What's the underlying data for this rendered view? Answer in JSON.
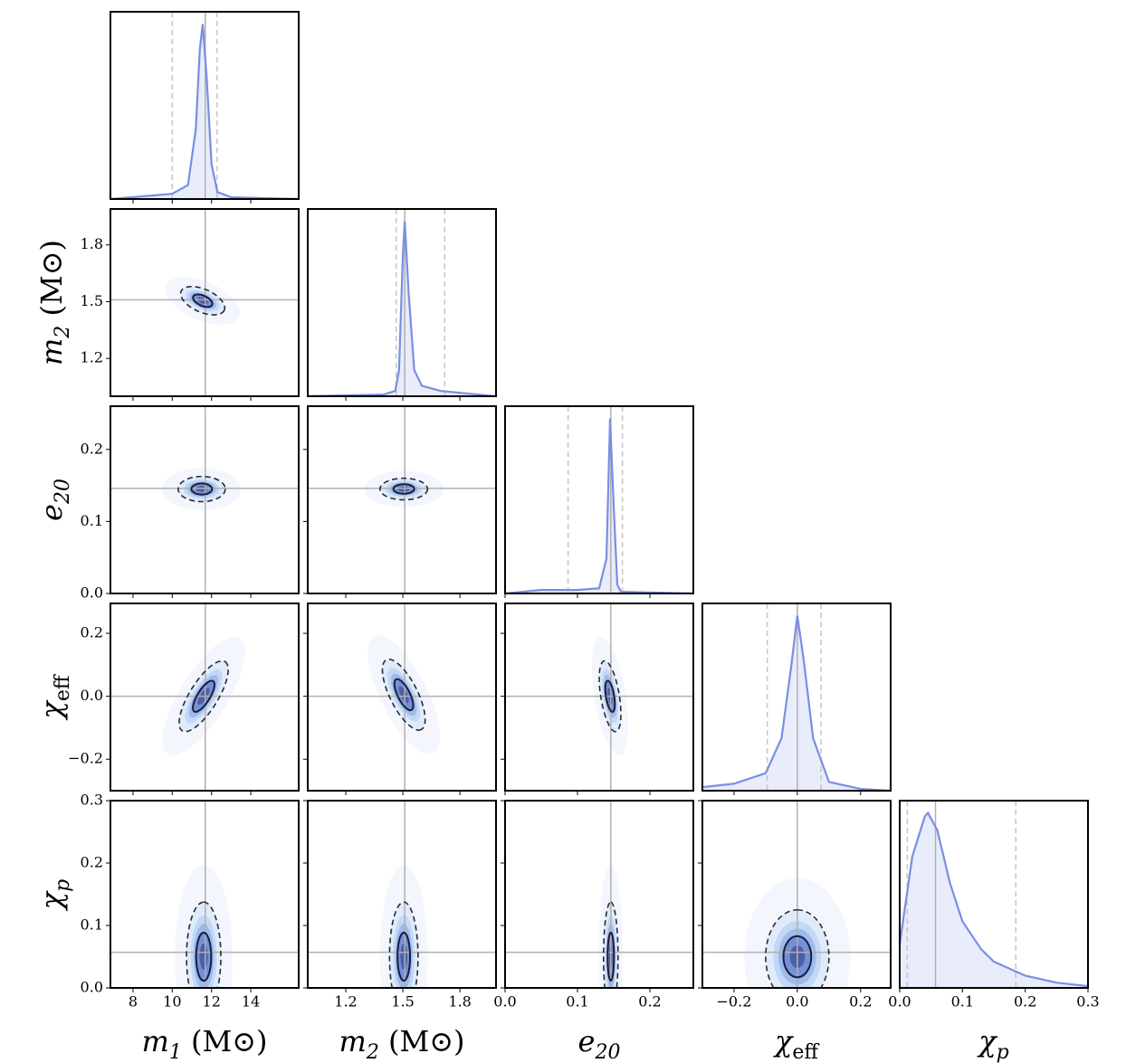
{
  "chart_data": {
    "type": "corner",
    "curve_color": "#7a8ee3",
    "fill_color": "#e8ecfb",
    "truth_color": "#b0b0b0",
    "quantile_color": "#c8c8c8",
    "contour_colors": [
      "#f3f7fd",
      "#dfeafa",
      "#c3d8f5",
      "#9dbbec",
      "#7391d9",
      "#4f5fa6"
    ],
    "parameters": [
      {
        "label": {
          "symbol": "m",
          "sub": "1",
          "unit": " (M⊙)"
        },
        "lim": [
          6.85,
          16.44
        ],
        "ticks": [
          8,
          10,
          12,
          14
        ],
        "truth": 11.68,
        "quantiles": [
          10.0,
          12.28
        ],
        "kde": {
          "x": [
            6.85,
            9,
            10,
            10.8,
            11.2,
            11.4,
            11.55,
            11.75,
            12.0,
            12.3,
            13,
            16.44
          ],
          "density": [
            0,
            0.02,
            0.03,
            0.08,
            0.4,
            0.85,
            1.0,
            0.7,
            0.2,
            0.04,
            0.01,
            0
          ]
        }
      },
      {
        "label": {
          "symbol": "m",
          "sub": "2",
          "unit": " (M⊙)"
        },
        "lim": [
          1.0,
          1.99
        ],
        "ticks": [
          1.2,
          1.5,
          1.8
        ],
        "truth": 1.51,
        "quantiles": [
          1.465,
          1.72
        ],
        "kde": {
          "x": [
            1.0,
            1.4,
            1.46,
            1.48,
            1.5,
            1.51,
            1.53,
            1.56,
            1.6,
            1.7,
            1.99
          ],
          "density": [
            0,
            0.01,
            0.03,
            0.15,
            0.8,
            1.0,
            0.6,
            0.15,
            0.06,
            0.03,
            0
          ]
        }
      },
      {
        "label": {
          "symbol": "e",
          "sub": "20",
          "unit": ""
        },
        "lim": [
          0,
          0.26
        ],
        "ticks": [
          {
            "value": 0,
            "label": "0.0"
          },
          0.1,
          0.2
        ],
        "truth": 0.146,
        "quantiles": [
          0.087,
          0.162
        ],
        "kde": {
          "x": [
            0,
            0.05,
            0.1,
            0.13,
            0.14,
            0.145,
            0.15,
            0.155,
            0.16,
            0.26
          ],
          "density": [
            0,
            0.02,
            0.02,
            0.03,
            0.2,
            1.0,
            0.5,
            0.05,
            0.01,
            0
          ]
        }
      },
      {
        "label": {
          "symbol": "χ",
          "sub": "eff",
          "unit": ""
        },
        "lim": [
          -0.3,
          0.295
        ],
        "ticks": [
          {
            "value": -0.2,
            "label": "−0.2"
          },
          {
            "value": 0,
            "label": "0.0"
          },
          0.2
        ],
        "truth": 0.0,
        "quantiles": [
          -0.095,
          0.075
        ],
        "kde": {
          "x": [
            -0.3,
            -0.2,
            -0.1,
            -0.05,
            -0.02,
            0.0,
            0.02,
            0.05,
            0.1,
            0.2,
            0.295
          ],
          "density": [
            0.02,
            0.04,
            0.1,
            0.3,
            0.7,
            1.0,
            0.75,
            0.3,
            0.05,
            0.01,
            0
          ]
        }
      },
      {
        "label": {
          "symbol": "χ",
          "sub": "p",
          "unit": ""
        },
        "lim": [
          0,
          0.3
        ],
        "ticks": [
          {
            "value": 0,
            "label": "0.0"
          },
          0.1,
          0.2,
          0.3
        ],
        "truth": 0.057,
        "quantiles": [
          0.012,
          0.185
        ],
        "kde": {
          "x": [
            0,
            0.02,
            0.04,
            0.045,
            0.06,
            0.08,
            0.1,
            0.13,
            0.15,
            0.2,
            0.25,
            0.3
          ],
          "density": [
            0.25,
            0.75,
            0.98,
            1.0,
            0.9,
            0.6,
            0.38,
            0.22,
            0.15,
            0.07,
            0.03,
            0.01
          ]
        }
      }
    ],
    "pairs": [
      [
        {
          "mean": [
            11.55,
            1.505
          ],
          "sd": [
            0.45,
            0.03
          ],
          "rho": -0.5
        }
      ],
      [
        {
          "mean": [
            11.5,
            0.145
          ],
          "sd": [
            0.48,
            0.007
          ],
          "rho": 0
        },
        {
          "mean": [
            1.505,
            0.145
          ],
          "sd": [
            0.05,
            0.006
          ],
          "rho": 0
        }
      ],
      [
        {
          "mean": [
            11.6,
            0.0
          ],
          "sd": [
            0.5,
            0.045
          ],
          "rho": 0.75
        },
        {
          "mean": [
            1.505,
            0.005
          ],
          "sd": [
            0.045,
            0.045
          ],
          "rho": -0.7
        },
        {
          "mean": [
            0.145,
            0.0
          ],
          "sd": [
            0.006,
            0.045
          ],
          "rho": -0.5
        }
      ],
      [
        {
          "mean": [
            11.6,
            0.05
          ],
          "sd": [
            0.35,
            0.035
          ],
          "rho": 0
        },
        {
          "mean": [
            1.505,
            0.05
          ],
          "sd": [
            0.03,
            0.035
          ],
          "rho": 0
        },
        {
          "mean": [
            0.146,
            0.05
          ],
          "sd": [
            0.004,
            0.035
          ],
          "rho": 0
        },
        {
          "mean": [
            0.0,
            0.05
          ],
          "sd": [
            0.04,
            0.03
          ],
          "rho": 0
        }
      ]
    ]
  }
}
